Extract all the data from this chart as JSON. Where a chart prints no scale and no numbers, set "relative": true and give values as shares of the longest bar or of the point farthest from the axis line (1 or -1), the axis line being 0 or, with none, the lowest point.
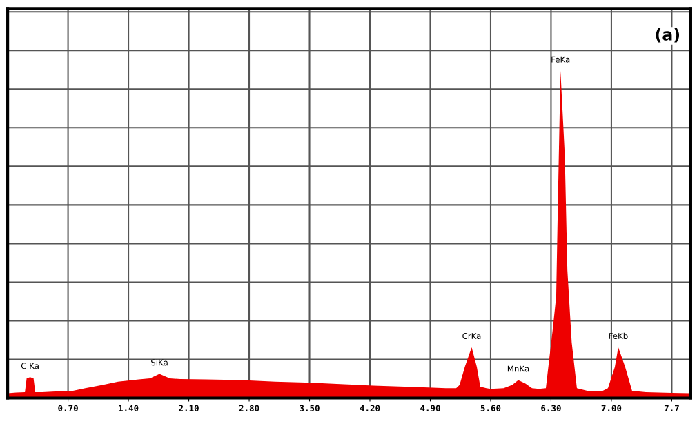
{
  "chart_data": {
    "type": "area",
    "relative": true,
    "x": [
      0,
      0.1,
      0.2,
      0.22,
      0.26,
      0.3,
      0.32,
      0.4,
      0.55,
      0.72,
      0.9,
      1.1,
      1.28,
      1.52,
      1.65,
      1.76,
      1.88,
      2.0,
      2.3,
      2.72,
      3.1,
      3.52,
      3.9,
      4.24,
      4.6,
      4.88,
      5.08,
      5.2,
      5.24,
      5.3,
      5.38,
      5.44,
      5.48,
      5.55,
      5.6,
      5.75,
      5.85,
      5.92,
      6.0,
      6.08,
      6.16,
      6.24,
      6.32,
      6.36,
      6.38,
      6.41,
      6.46,
      6.49,
      6.54,
      6.6,
      6.72,
      6.9,
      6.96,
      7.04,
      7.08,
      7.16,
      7.24,
      7.4,
      7.7,
      7.92
    ],
    "series": [
      {
        "color": "#ee0000",
        "values": [
          0.015,
          0.017,
          0.018,
          0.06,
          0.064,
          0.06,
          0.018,
          0.018,
          0.02,
          0.02,
          0.03,
          0.04,
          0.05,
          0.057,
          0.06,
          0.074,
          0.06,
          0.058,
          0.057,
          0.055,
          0.05,
          0.047,
          0.042,
          0.038,
          0.035,
          0.032,
          0.03,
          0.03,
          0.04,
          0.095,
          0.155,
          0.095,
          0.035,
          0.03,
          0.028,
          0.03,
          0.04,
          0.055,
          0.045,
          0.03,
          0.028,
          0.03,
          0.21,
          0.31,
          0.6,
          1.0,
          0.74,
          0.39,
          0.17,
          0.03,
          0.022,
          0.022,
          0.03,
          0.095,
          0.155,
          0.095,
          0.022,
          0.018,
          0.016,
          0.015
        ]
      }
    ],
    "xlim": [
      0,
      7.92
    ],
    "xticks": [
      {
        "value": 0.7,
        "label": "0.70"
      },
      {
        "value": 1.4,
        "label": "1.40"
      },
      {
        "value": 2.1,
        "label": "2.10"
      },
      {
        "value": 2.8,
        "label": "2.80"
      },
      {
        "value": 3.5,
        "label": "3.50"
      },
      {
        "value": 4.2,
        "label": "4.20"
      },
      {
        "value": 4.9,
        "label": "4.90"
      },
      {
        "value": 5.6,
        "label": "5.60"
      },
      {
        "value": 6.3,
        "label": "6.30"
      },
      {
        "value": 7.0,
        "label": "7.00"
      },
      {
        "value": 7.7,
        "label": "7.7"
      }
    ],
    "grid": true,
    "annotations": [
      {
        "text": "C Ka",
        "x": 0.26,
        "y": 0.064
      },
      {
        "text": "SiKa",
        "x": 1.76,
        "y": 0.074
      },
      {
        "text": "CrKa",
        "x": 5.38,
        "y": 0.155
      },
      {
        "text": "MnKa",
        "x": 5.92,
        "y": 0.055
      },
      {
        "text": "FeKa",
        "x": 6.41,
        "y": 1.0
      },
      {
        "text": "FeKb",
        "x": 7.08,
        "y": 0.155
      },
      "(a)"
    ]
  }
}
